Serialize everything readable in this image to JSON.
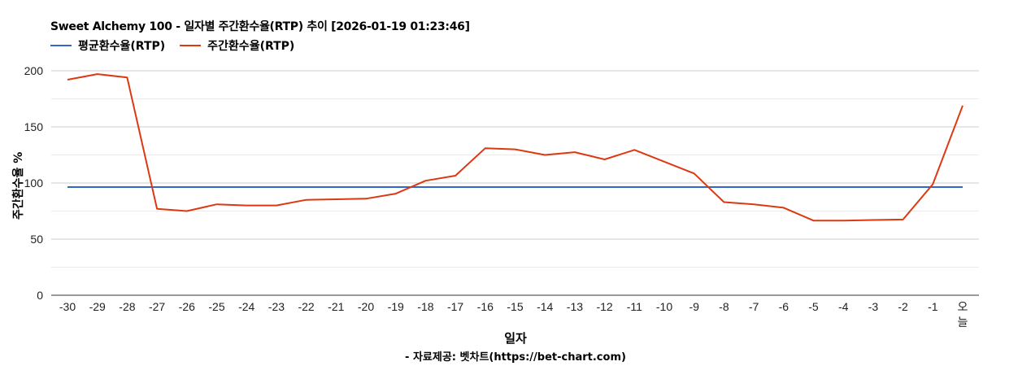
{
  "title": "Sweet Alchemy 100 - 일자별 주간환수율(RTP) 추이 [2026-01-19 01:23:46]",
  "legend": [
    {
      "label": "평균환수율(RTP)",
      "color": "#3366cc"
    },
    {
      "label": "주간환수율(RTP)",
      "color": "#dc3912"
    }
  ],
  "ylabel": "주간환수율 %",
  "xlabel": "일자",
  "source": "- 자료제공: 벳차트(https://bet-chart.com)",
  "chart_data": {
    "type": "line",
    "title": "Sweet Alchemy 100 - 일자별 주간환수율(RTP) 추이 [2026-01-19 01:23:46]",
    "xlabel": "일자",
    "ylabel": "주간환수율 %",
    "ylim": [
      0,
      200
    ],
    "yticks": [
      0,
      50,
      100,
      150,
      200
    ],
    "grid": true,
    "legend_position": "top",
    "categories": [
      "-30",
      "-29",
      "-28",
      "-27",
      "-26",
      "-25",
      "-24",
      "-23",
      "-22",
      "-21",
      "-20",
      "-19",
      "-18",
      "-17",
      "-16",
      "-15",
      "-14",
      "-13",
      "-12",
      "-11",
      "-10",
      "-9",
      "-8",
      "-7",
      "-6",
      "-5",
      "-4",
      "-3",
      "-2",
      "-1",
      "오늘"
    ],
    "series": [
      {
        "name": "평균환수율(RTP)",
        "color": "#3366cc",
        "values": [
          96.4,
          96.4,
          96.4,
          96.4,
          96.4,
          96.4,
          96.4,
          96.4,
          96.4,
          96.4,
          96.4,
          96.4,
          96.4,
          96.4,
          96.4,
          96.4,
          96.4,
          96.4,
          96.4,
          96.4,
          96.4,
          96.4,
          96.4,
          96.4,
          96.4,
          96.4,
          96.4,
          96.4,
          96.4,
          96.4,
          96.4
        ]
      },
      {
        "name": "주간환수율(RTP)",
        "color": "#dc3912",
        "values": [
          192,
          197,
          194,
          77,
          75,
          81,
          80,
          80,
          85,
          85.5,
          86,
          90.5,
          102,
          106.5,
          131,
          130,
          125,
          127.5,
          121,
          129.5,
          119,
          108.5,
          83,
          81,
          78,
          66.5,
          66.5,
          67,
          67.5,
          99,
          169
        ]
      }
    ]
  }
}
